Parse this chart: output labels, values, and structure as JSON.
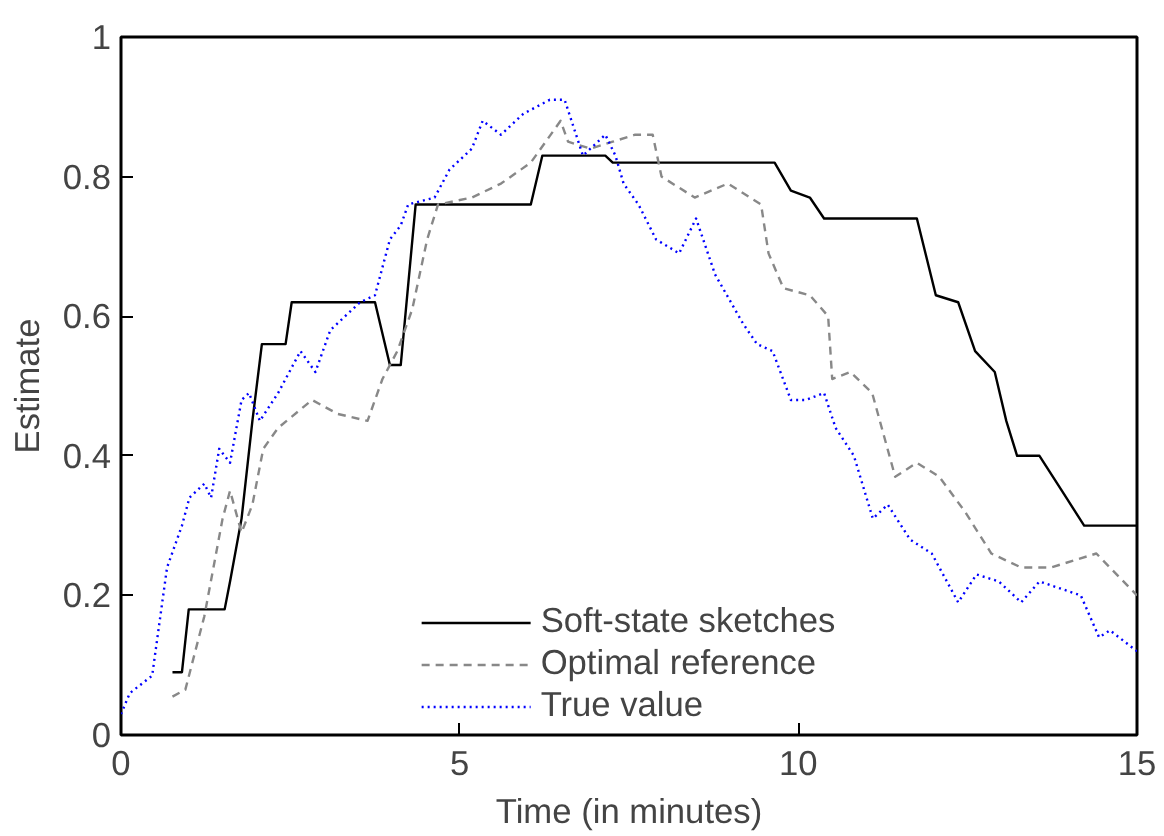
{
  "chart_data": {
    "type": "line",
    "xlabel": "Time (in minutes)",
    "ylabel": "Estimate",
    "xlim": [
      0,
      15
    ],
    "ylim": [
      0,
      1
    ],
    "xticks": [
      0,
      5,
      10,
      15
    ],
    "yticks": [
      0,
      0.2,
      0.4,
      0.6,
      0.8,
      1
    ],
    "grid": false,
    "legend": "bottom",
    "marker": "none",
    "series": [
      {
        "name": "Soft-state sketches",
        "color": "#000000",
        "line_style": "solid",
        "x": [
          0.76,
          0.9,
          1.0,
          1.53,
          1.61,
          1.78,
          1.94,
          2.08,
          2.43,
          2.52,
          3.75,
          3.97,
          4.13,
          4.35,
          6.05,
          6.22,
          7.15,
          7.26,
          9.65,
          9.89,
          10.17,
          10.38,
          11.75,
          12.03,
          12.36,
          12.61,
          12.9,
          13.07,
          13.23,
          13.56,
          13.89,
          14.22,
          15.0
        ],
        "values": [
          0.09,
          0.09,
          0.18,
          0.18,
          0.22,
          0.31,
          0.45,
          0.56,
          0.56,
          0.62,
          0.62,
          0.53,
          0.53,
          0.76,
          0.76,
          0.83,
          0.83,
          0.82,
          0.82,
          0.78,
          0.77,
          0.74,
          0.74,
          0.63,
          0.62,
          0.55,
          0.52,
          0.45,
          0.4,
          0.4,
          0.35,
          0.3,
          0.3
        ]
      },
      {
        "name": "Optimal reference",
        "color": "#888888",
        "line_style": "dashed",
        "x": [
          0.76,
          0.95,
          1.23,
          1.5,
          1.61,
          1.78,
          1.94,
          2.1,
          2.32,
          2.82,
          3.2,
          3.64,
          3.86,
          4.08,
          4.3,
          4.52,
          4.68,
          5.18,
          5.61,
          6.05,
          6.27,
          6.49,
          6.6,
          6.93,
          7.26,
          7.59,
          7.85,
          7.98,
          8.47,
          8.96,
          9.45,
          9.56,
          9.78,
          10.17,
          10.44,
          10.5,
          10.77,
          11.09,
          11.43,
          11.75,
          12.08,
          12.46,
          12.85,
          13.29,
          13.73,
          14.4,
          15.0
        ],
        "values": [
          0.055,
          0.065,
          0.17,
          0.31,
          0.35,
          0.29,
          0.33,
          0.41,
          0.44,
          0.48,
          0.46,
          0.45,
          0.51,
          0.55,
          0.61,
          0.71,
          0.76,
          0.77,
          0.79,
          0.82,
          0.85,
          0.88,
          0.85,
          0.84,
          0.85,
          0.86,
          0.86,
          0.8,
          0.77,
          0.79,
          0.76,
          0.69,
          0.64,
          0.63,
          0.6,
          0.51,
          0.52,
          0.49,
          0.37,
          0.39,
          0.37,
          0.32,
          0.26,
          0.24,
          0.24,
          0.26,
          0.2
        ]
      },
      {
        "name": "True value",
        "color": "#0000ff",
        "line_style": "dotted",
        "x": [
          0,
          0.13,
          0.46,
          0.68,
          0.9,
          1.01,
          1.23,
          1.33,
          1.45,
          1.61,
          1.78,
          1.89,
          2.05,
          2.32,
          2.65,
          2.87,
          3.09,
          3.31,
          3.53,
          3.75,
          3.97,
          4.13,
          4.24,
          4.63,
          4.85,
          5.18,
          5.34,
          5.61,
          5.94,
          6.33,
          6.55,
          6.82,
          7.15,
          7.3,
          7.42,
          7.64,
          7.9,
          8.24,
          8.49,
          8.77,
          9.18,
          9.39,
          9.62,
          9.89,
          10.11,
          10.38,
          10.55,
          10.82,
          11.1,
          11.32,
          11.65,
          11.97,
          12.36,
          12.63,
          12.96,
          13.29,
          13.56,
          14.17,
          14.44,
          14.6,
          15.0
        ],
        "values": [
          0.03,
          0.06,
          0.085,
          0.24,
          0.3,
          0.34,
          0.36,
          0.34,
          0.41,
          0.39,
          0.48,
          0.49,
          0.45,
          0.49,
          0.55,
          0.52,
          0.58,
          0.6,
          0.62,
          0.63,
          0.71,
          0.73,
          0.76,
          0.77,
          0.81,
          0.84,
          0.88,
          0.86,
          0.89,
          0.91,
          0.91,
          0.83,
          0.86,
          0.83,
          0.79,
          0.76,
          0.71,
          0.69,
          0.74,
          0.66,
          0.59,
          0.56,
          0.55,
          0.48,
          0.48,
          0.49,
          0.44,
          0.4,
          0.31,
          0.33,
          0.28,
          0.26,
          0.19,
          0.23,
          0.22,
          0.19,
          0.22,
          0.2,
          0.14,
          0.15,
          0.12
        ]
      }
    ]
  }
}
